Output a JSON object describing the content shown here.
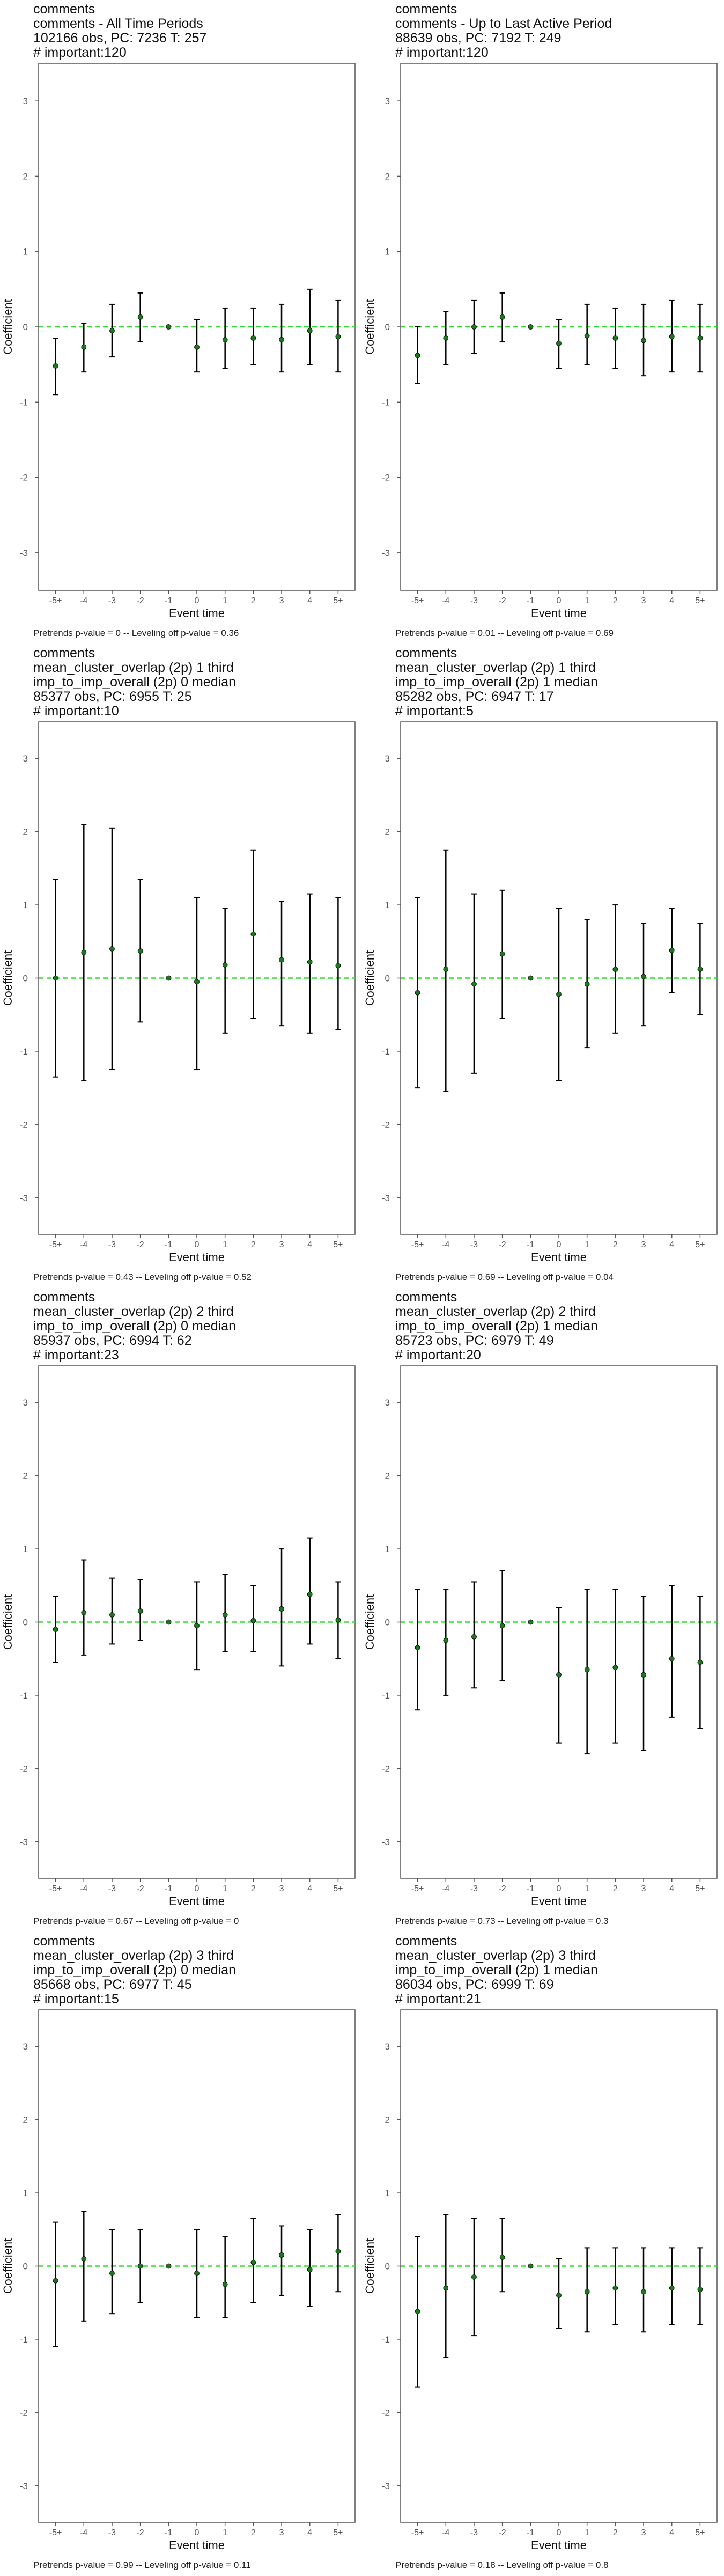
{
  "chart_data": [
    {
      "type": "scatter",
      "title_lines": [
        "comments",
        "comments - All Time Periods",
        "102166 obs, PC: 7236 T: 257",
        "# important:120"
      ],
      "xlabel": "Event time",
      "ylabel": "Coefficient",
      "ylim": [
        -3.5,
        3.5
      ],
      "yticks": [
        -3,
        -2,
        -1,
        0,
        1,
        2,
        3
      ],
      "categories": [
        "-5+",
        "-4",
        "-3",
        "-2",
        "-1",
        "0",
        "1",
        "2",
        "3",
        "4",
        "5+"
      ],
      "series": [
        {
          "values": [
            -0.52,
            -0.27,
            -0.05,
            0.13,
            0.0,
            -0.27,
            -0.17,
            -0.15,
            -0.17,
            -0.05,
            -0.13
          ],
          "ci_low": [
            -0.9,
            -0.6,
            -0.4,
            -0.2,
            0.0,
            -0.6,
            -0.55,
            -0.5,
            -0.6,
            -0.5,
            -0.6
          ],
          "ci_high": [
            -0.15,
            0.05,
            0.3,
            0.45,
            0.0,
            0.1,
            0.25,
            0.25,
            0.3,
            0.5,
            0.35
          ],
          "color": "#1a7a1a"
        }
      ],
      "reference_line": {
        "y": 0,
        "color": "#33dd33",
        "style": "dashed"
      },
      "footer": "Pretrends p-value = 0 -- Leveling off p-value = 0.36"
    },
    {
      "type": "scatter",
      "title_lines": [
        "comments",
        "comments - Up to Last Active Period",
        "88639 obs, PC: 7192 T: 249",
        "# important:120"
      ],
      "xlabel": "Event time",
      "ylabel": "Coefficient",
      "ylim": [
        -3.5,
        3.5
      ],
      "yticks": [
        -3,
        -2,
        -1,
        0,
        1,
        2,
        3
      ],
      "categories": [
        "-5+",
        "-4",
        "-3",
        "-2",
        "-1",
        "0",
        "1",
        "2",
        "3",
        "4",
        "5+"
      ],
      "series": [
        {
          "values": [
            -0.38,
            -0.15,
            0.0,
            0.13,
            0.0,
            -0.22,
            -0.12,
            -0.15,
            -0.18,
            -0.13,
            -0.15
          ],
          "ci_low": [
            -0.75,
            -0.5,
            -0.35,
            -0.2,
            0.0,
            -0.55,
            -0.5,
            -0.55,
            -0.65,
            -0.6,
            -0.6
          ],
          "ci_high": [
            0.0,
            0.2,
            0.35,
            0.45,
            0.0,
            0.1,
            0.3,
            0.25,
            0.3,
            0.35,
            0.3
          ],
          "color": "#1a7a1a"
        }
      ],
      "reference_line": {
        "y": 0,
        "color": "#33dd33",
        "style": "dashed"
      },
      "footer": "Pretrends p-value = 0.01 -- Leveling off p-value = 0.69"
    },
    {
      "type": "scatter",
      "title_lines": [
        "comments",
        "mean_cluster_overlap (2p) 1 third",
        "imp_to_imp_overall (2p) 0 median",
        "85377 obs, PC: 6955 T: 25",
        "# important:10"
      ],
      "xlabel": "Event time",
      "ylabel": "Coefficient",
      "ylim": [
        -3.5,
        3.5
      ],
      "yticks": [
        -3,
        -2,
        -1,
        0,
        1,
        2,
        3
      ],
      "categories": [
        "-5+",
        "-4",
        "-3",
        "-2",
        "-1",
        "0",
        "1",
        "2",
        "3",
        "4",
        "5+"
      ],
      "series": [
        {
          "values": [
            0.0,
            0.35,
            0.4,
            0.37,
            0.0,
            -0.05,
            0.18,
            0.6,
            0.25,
            0.22,
            0.17
          ],
          "ci_low": [
            -1.35,
            -1.4,
            -1.25,
            -0.6,
            0.0,
            -1.25,
            -0.75,
            -0.55,
            -0.65,
            -0.75,
            -0.7
          ],
          "ci_high": [
            1.35,
            2.1,
            2.05,
            1.35,
            0.0,
            1.1,
            0.95,
            1.75,
            1.05,
            1.15,
            1.1
          ],
          "color": "#1a7a1a"
        }
      ],
      "reference_line": {
        "y": 0,
        "color": "#33dd33",
        "style": "dashed"
      },
      "footer": "Pretrends p-value = 0.43 -- Leveling off p-value = 0.52"
    },
    {
      "type": "scatter",
      "title_lines": [
        "comments",
        "mean_cluster_overlap (2p) 1 third",
        "imp_to_imp_overall (2p) 1 median",
        "85282 obs, PC: 6947 T: 17",
        "# important:5"
      ],
      "xlabel": "Event time",
      "ylabel": "Coefficient",
      "ylim": [
        -3.5,
        3.5
      ],
      "yticks": [
        -3,
        -2,
        -1,
        0,
        1,
        2,
        3
      ],
      "categories": [
        "-5+",
        "-4",
        "-3",
        "-2",
        "-1",
        "0",
        "1",
        "2",
        "3",
        "4",
        "5+"
      ],
      "series": [
        {
          "values": [
            -0.2,
            0.12,
            -0.08,
            0.33,
            0.0,
            -0.22,
            -0.08,
            0.12,
            0.02,
            0.38,
            0.12
          ],
          "ci_low": [
            -1.5,
            -1.55,
            -1.3,
            -0.55,
            0.0,
            -1.4,
            -0.95,
            -0.75,
            -0.65,
            -0.2,
            -0.5
          ],
          "ci_high": [
            1.1,
            1.75,
            1.15,
            1.2,
            0.0,
            0.95,
            0.8,
            1.0,
            0.75,
            0.95,
            0.75
          ],
          "color": "#1a7a1a"
        }
      ],
      "reference_line": {
        "y": 0,
        "color": "#33dd33",
        "style": "dashed"
      },
      "footer": "Pretrends p-value = 0.69 -- Leveling off p-value = 0.04"
    },
    {
      "type": "scatter",
      "title_lines": [
        "comments",
        "mean_cluster_overlap (2p) 2 third",
        "imp_to_imp_overall (2p) 0 median",
        "85937 obs, PC: 6994 T: 62",
        "# important:23"
      ],
      "xlabel": "Event time",
      "ylabel": "Coefficient",
      "ylim": [
        -3.5,
        3.5
      ],
      "yticks": [
        -3,
        -2,
        -1,
        0,
        1,
        2,
        3
      ],
      "categories": [
        "-5+",
        "-4",
        "-3",
        "-2",
        "-1",
        "0",
        "1",
        "2",
        "3",
        "4",
        "5+"
      ],
      "series": [
        {
          "values": [
            -0.1,
            0.13,
            0.1,
            0.15,
            0.0,
            -0.05,
            0.1,
            0.02,
            0.18,
            0.38,
            0.03
          ],
          "ci_low": [
            -0.55,
            -0.45,
            -0.3,
            -0.25,
            0.0,
            -0.65,
            -0.4,
            -0.4,
            -0.6,
            -0.3,
            -0.5
          ],
          "ci_high": [
            0.35,
            0.85,
            0.6,
            0.58,
            0.0,
            0.55,
            0.65,
            0.5,
            1.0,
            1.15,
            0.55
          ],
          "color": "#1a7a1a"
        }
      ],
      "reference_line": {
        "y": 0,
        "color": "#33dd33",
        "style": "dashed"
      },
      "footer": "Pretrends p-value = 0.67 -- Leveling off p-value = 0"
    },
    {
      "type": "scatter",
      "title_lines": [
        "comments",
        "mean_cluster_overlap (2p) 2 third",
        "imp_to_imp_overall (2p) 1 median",
        "85723 obs, PC: 6979 T: 49",
        "# important:20"
      ],
      "xlabel": "Event time",
      "ylabel": "Coefficient",
      "ylim": [
        -3.5,
        3.5
      ],
      "yticks": [
        -3,
        -2,
        -1,
        0,
        1,
        2,
        3
      ],
      "categories": [
        "-5+",
        "-4",
        "-3",
        "-2",
        "-1",
        "0",
        "1",
        "2",
        "3",
        "4",
        "5+"
      ],
      "series": [
        {
          "values": [
            -0.35,
            -0.25,
            -0.2,
            -0.05,
            0.0,
            -0.72,
            -0.65,
            -0.62,
            -0.72,
            -0.5,
            -0.55
          ],
          "ci_low": [
            -1.2,
            -1.0,
            -0.9,
            -0.8,
            0.0,
            -1.65,
            -1.8,
            -1.65,
            -1.75,
            -1.3,
            -1.45
          ],
          "ci_high": [
            0.45,
            0.45,
            0.55,
            0.7,
            0.0,
            0.2,
            0.45,
            0.45,
            0.35,
            0.5,
            0.35
          ],
          "color": "#1a7a1a"
        }
      ],
      "reference_line": {
        "y": 0,
        "color": "#33dd33",
        "style": "dashed"
      },
      "footer": "Pretrends p-value = 0.73 -- Leveling off p-value = 0.3"
    },
    {
      "type": "scatter",
      "title_lines": [
        "comments",
        "mean_cluster_overlap (2p) 3 third",
        "imp_to_imp_overall (2p) 0 median",
        "85668 obs, PC: 6977 T: 45",
        "# important:15"
      ],
      "xlabel": "Event time",
      "ylabel": "Coefficient",
      "ylim": [
        -3.5,
        3.5
      ],
      "yticks": [
        -3,
        -2,
        -1,
        0,
        1,
        2,
        3
      ],
      "categories": [
        "-5+",
        "-4",
        "-3",
        "-2",
        "-1",
        "0",
        "1",
        "2",
        "3",
        "4",
        "5+"
      ],
      "series": [
        {
          "values": [
            -0.2,
            0.1,
            -0.1,
            0.0,
            0.0,
            -0.1,
            -0.25,
            0.05,
            0.15,
            -0.05,
            0.2
          ],
          "ci_low": [
            -1.1,
            -0.75,
            -0.65,
            -0.5,
            0.0,
            -0.7,
            -0.7,
            -0.5,
            -0.4,
            -0.55,
            -0.35
          ],
          "ci_high": [
            0.6,
            0.75,
            0.5,
            0.5,
            0.0,
            0.5,
            0.4,
            0.65,
            0.55,
            0.5,
            0.7
          ],
          "color": "#1a7a1a"
        }
      ],
      "reference_line": {
        "y": 0,
        "color": "#33dd33",
        "style": "dashed"
      },
      "footer": "Pretrends p-value = 0.99 -- Leveling off p-value = 0.11"
    },
    {
      "type": "scatter",
      "title_lines": [
        "comments",
        "mean_cluster_overlap (2p) 3 third",
        "imp_to_imp_overall (2p) 1 median",
        "86034 obs, PC: 6999 T: 69",
        "# important:21"
      ],
      "xlabel": "Event time",
      "ylabel": "Coefficient",
      "ylim": [
        -3.5,
        3.5
      ],
      "yticks": [
        -3,
        -2,
        -1,
        0,
        1,
        2,
        3
      ],
      "categories": [
        "-5+",
        "-4",
        "-3",
        "-2",
        "-1",
        "0",
        "1",
        "2",
        "3",
        "4",
        "5+"
      ],
      "series": [
        {
          "values": [
            -0.62,
            -0.3,
            -0.15,
            0.12,
            0.0,
            -0.4,
            -0.35,
            -0.3,
            -0.35,
            -0.3,
            -0.32
          ],
          "ci_low": [
            -1.65,
            -1.25,
            -0.95,
            -0.35,
            0.0,
            -0.85,
            -0.9,
            -0.8,
            -0.9,
            -0.8,
            -0.8
          ],
          "ci_high": [
            0.4,
            0.7,
            0.65,
            0.65,
            0.0,
            0.1,
            0.25,
            0.25,
            0.25,
            0.25,
            0.25
          ],
          "color": "#1a7a1a"
        }
      ],
      "reference_line": {
        "y": 0,
        "color": "#33dd33",
        "style": "dashed"
      },
      "footer": "Pretrends p-value = 0.18 -- Leveling off p-value = 0.8"
    }
  ]
}
